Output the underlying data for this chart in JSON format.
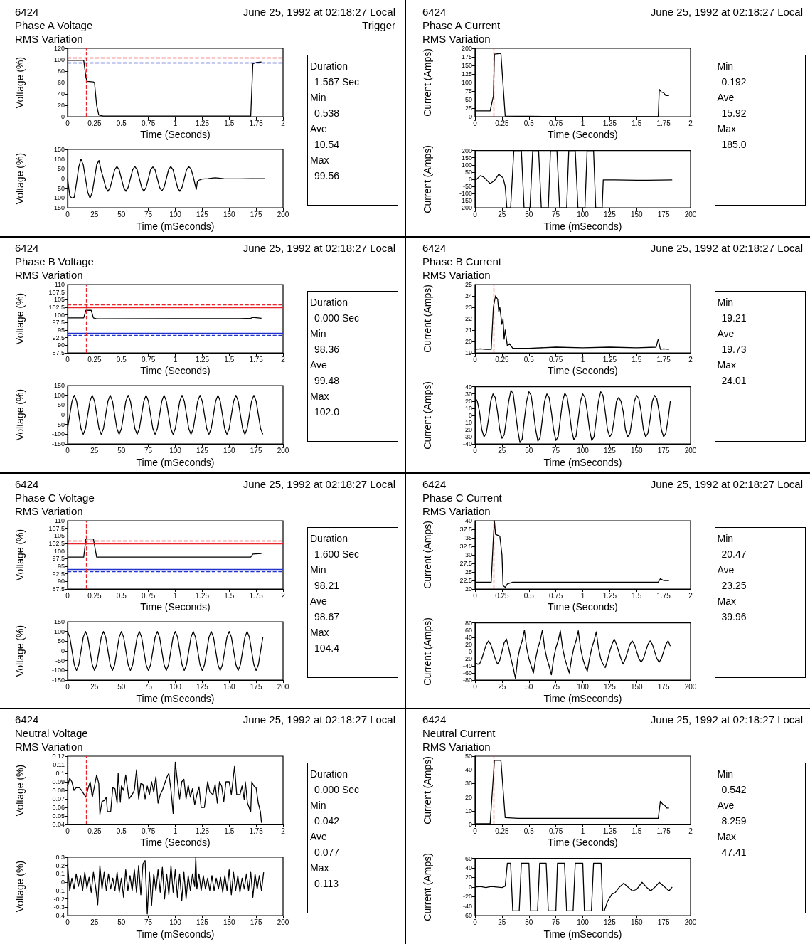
{
  "chart_data": [
    {
      "type": "line",
      "title": "Phase A Voltage",
      "subtitle": "RMS Variation",
      "annotations": [
        "6424",
        "June 25, 1992 at 02:18:27 Local",
        "Trigger"
      ],
      "xlabel": "Time (Seconds)",
      "ylabel": "Voltage (%)",
      "color": "#000000",
      "x": [
        0,
        0.15,
        0.17,
        0.18,
        0.24,
        0.25,
        0.27,
        0.29,
        0.33,
        1.7,
        1.72,
        1.75,
        1.8
      ],
      "values": [
        99,
        99,
        70,
        62,
        61,
        60,
        20,
        3,
        1,
        1,
        93,
        95,
        96
      ],
      "xlim": [
        0,
        2
      ],
      "xticks": [
        0,
        0.25,
        0.5,
        0.75,
        1,
        1.25,
        1.5,
        1.75,
        2
      ],
      "ylim": [
        0,
        120
      ],
      "yticks": [
        0,
        20,
        40,
        60,
        80,
        100,
        120
      ],
      "ref_lines": [
        {
          "axis": "y",
          "value": 104,
          "color": "#e8242a",
          "line_style": "dashed"
        },
        {
          "axis": "y",
          "value": 95,
          "color": "#2233cc",
          "line_style": "dashed"
        },
        {
          "axis": "x",
          "value": 0.165,
          "color": "#e8242a",
          "line_style": "dashed"
        }
      ]
    },
    {
      "type": "line",
      "xlabel": "Time (mSeconds)",
      "ylabel": "Voltage (%)",
      "color": "#000000",
      "x": [
        0,
        2.08,
        4.17,
        6.25,
        8.33,
        10.42,
        12.5,
        14.58,
        16.67,
        18.75,
        20.83,
        22.92,
        25,
        27.08,
        29.17,
        31.25,
        33.33,
        35.42,
        37.5,
        39.58,
        41.67,
        43.75,
        45.83,
        47.92,
        50,
        52.08,
        54.17,
        56.25,
        58.33,
        60.42,
        62.5,
        64.58,
        66.67,
        68.75,
        70.83,
        72.92,
        75,
        77.08,
        79.17,
        81.25,
        83.33,
        85.42,
        87.5,
        89.58,
        91.67,
        93.75,
        95.83,
        97.92,
        100,
        102.08,
        104.17,
        106.25,
        108.33,
        110.42,
        112.5,
        114.58,
        116.67,
        118.75,
        119.5,
        120.5,
        122,
        125,
        130,
        137,
        145,
        160,
        170,
        183
      ],
      "values": [
        0,
        -90,
        -100,
        -95,
        -20,
        60,
        100,
        71,
        0,
        -71,
        -100,
        -71,
        0,
        71,
        93,
        40,
        0,
        -45,
        -65,
        -45,
        0,
        45,
        62,
        45,
        0,
        -45,
        -65,
        -45,
        0,
        45,
        62,
        45,
        0,
        -45,
        -65,
        -45,
        0,
        45,
        60,
        45,
        0,
        -45,
        -63,
        -45,
        0,
        45,
        62,
        45,
        0,
        -45,
        -65,
        -45,
        0,
        45,
        62,
        50,
        10,
        -40,
        -55,
        -15,
        -8,
        -2,
        0,
        4,
        0,
        -1,
        0,
        0
      ],
      "xlim": [
        0,
        200
      ],
      "xticks": [
        0,
        25,
        50,
        75,
        100,
        125,
        150,
        175,
        200
      ],
      "ylim": [
        -150,
        150
      ],
      "yticks": [
        -150,
        -100,
        -50,
        0,
        50,
        100,
        150
      ]
    },
    {
      "type": "other",
      "annotations": [
        "Duration",
        "1.567 Sec",
        "Min",
        "0.538",
        "Ave",
        "10.54",
        "Max",
        "99.56"
      ]
    },
    {
      "type": "line",
      "title": "Phase A Current",
      "subtitle": "RMS Variation",
      "annotations": [
        "6424",
        "June 25, 1992 at 02:18:27 Local"
      ],
      "xlabel": "Time (Seconds)",
      "ylabel": "Current (Amps)",
      "color": "#000000",
      "x": [
        0,
        0.14,
        0.17,
        0.18,
        0.24,
        0.28,
        0.5,
        1.7,
        1.71,
        1.73,
        1.75,
        1.77,
        1.8
      ],
      "values": [
        17,
        17,
        60,
        183,
        185,
        2,
        1,
        0,
        80,
        72,
        70,
        62,
        62
      ],
      "xlim": [
        0,
        2
      ],
      "xticks": [
        0,
        0.25,
        0.5,
        0.75,
        1,
        1.25,
        1.5,
        1.75,
        2
      ],
      "ylim": [
        0,
        200
      ],
      "yticks": [
        0,
        25,
        50,
        75,
        100,
        125,
        150,
        175,
        200
      ],
      "ref_lines": [
        {
          "axis": "x",
          "value": 0.165,
          "color": "#e8242a",
          "line_style": "dashed"
        }
      ]
    },
    {
      "type": "line",
      "xlabel": "Time (mSeconds)",
      "ylabel": "Current (Amps)",
      "color": "#000000",
      "x": [
        0,
        5,
        8,
        14,
        18,
        22,
        26,
        28,
        29.5,
        33,
        36,
        43,
        45.5,
        51,
        53.5,
        59,
        61.5,
        68,
        70,
        76,
        78.5,
        85,
        87,
        93,
        95.5,
        102,
        104,
        110,
        112,
        118,
        119,
        130,
        150,
        160,
        183
      ],
      "values": [
        -10,
        25,
        15,
        -30,
        -10,
        35,
        10,
        -50,
        -200,
        -200,
        200,
        200,
        -200,
        -200,
        200,
        200,
        -200,
        -200,
        200,
        200,
        -200,
        -200,
        200,
        200,
        -200,
        -200,
        200,
        200,
        -200,
        -200,
        -5,
        -5,
        -7,
        -7,
        -5
      ],
      "xlim": [
        0,
        200
      ],
      "xticks": [
        0,
        25,
        50,
        75,
        100,
        125,
        150,
        175,
        200
      ],
      "ylim": [
        -200,
        200
      ],
      "yticks": [
        -200,
        -150,
        -100,
        -50,
        0,
        50,
        100,
        150,
        200
      ]
    },
    {
      "type": "other",
      "annotations": [
        "Min",
        "0.192",
        "Ave",
        "15.92",
        "Max",
        "185.0"
      ]
    },
    {
      "type": "line",
      "title": "Phase B Voltage",
      "subtitle": "RMS Variation",
      "annotations": [
        "6424",
        "June 25, 1992 at 02:18:27 Local"
      ],
      "xlabel": "Time (Seconds)",
      "ylabel": "Voltage (%)",
      "color": "#000000",
      "x": [
        0,
        0.15,
        0.17,
        0.22,
        0.24,
        0.27,
        1,
        1.6,
        1.7,
        1.72,
        1.8
      ],
      "values": [
        99,
        99,
        101.5,
        101.5,
        99,
        98.7,
        98.8,
        98.8,
        98.9,
        99.2,
        98.9
      ],
      "xlim": [
        0,
        2
      ],
      "xticks": [
        0,
        0.25,
        0.5,
        0.75,
        1,
        1.25,
        1.5,
        1.75,
        2
      ],
      "ylim": [
        87.5,
        110
      ],
      "yticks": [
        87.5,
        90,
        92.5,
        95,
        97.5,
        100,
        102.5,
        105,
        107.5,
        110
      ],
      "ref_lines": [
        {
          "axis": "y",
          "value": 103.3,
          "color": "#e8242a",
          "line_style": "dashed"
        },
        {
          "axis": "y",
          "value": 102.5,
          "color": "#e8242a",
          "line_style": "solid"
        },
        {
          "axis": "y",
          "value": 94,
          "color": "#2233cc",
          "line_style": "solid"
        },
        {
          "axis": "y",
          "value": 93.3,
          "color": "#2233cc",
          "line_style": "dashed"
        },
        {
          "axis": "x",
          "value": 0.165,
          "color": "#e8242a",
          "line_style": "dashed"
        }
      ]
    },
    {
      "type": "line",
      "xlabel": "Time (mSeconds)",
      "ylabel": "Voltage (%)",
      "color": "#000000",
      "x": [
        0,
        2.08,
        4.17,
        6.25,
        8.33,
        10.42,
        12.5,
        14.58,
        16.67,
        18.75,
        20.83,
        22.92,
        25,
        27.08,
        29.17,
        31.25,
        33.33,
        35.42,
        37.5,
        39.58,
        41.67,
        43.75,
        45.83,
        47.92,
        50,
        52.08,
        54.17,
        56.25,
        58.33,
        60.42,
        62.5,
        64.58,
        66.67,
        68.75,
        70.83,
        72.92,
        75,
        77.08,
        79.17,
        81.25,
        83.33,
        85.42,
        87.5,
        89.58,
        91.67,
        93.75,
        95.83,
        97.92,
        100,
        102.08,
        104.17,
        106.25,
        108.33,
        110.42,
        112.5,
        114.58,
        116.67,
        118.75,
        120.83,
        122.92,
        125,
        127.08,
        129.17,
        131.25,
        133.33,
        135.42,
        137.5,
        139.58,
        141.67,
        143.75,
        145.83,
        147.92,
        150,
        152.08,
        154.17,
        156.25,
        158.33,
        160.42,
        162.5,
        164.58,
        166.67,
        168.75,
        170.83,
        172.92,
        175,
        177.08,
        179.17,
        181.25
      ],
      "values": [
        -71,
        0,
        71,
        100,
        71,
        0,
        -71,
        -100,
        -71,
        0,
        71,
        100,
        71,
        0,
        -71,
        -100,
        -71,
        0,
        71,
        100,
        71,
        0,
        -71,
        -100,
        -71,
        0,
        71,
        100,
        71,
        0,
        -71,
        -100,
        -71,
        0,
        71,
        100,
        71,
        0,
        -71,
        -100,
        -71,
        0,
        71,
        100,
        71,
        0,
        -71,
        -100,
        -71,
        0,
        71,
        100,
        71,
        0,
        -71,
        -100,
        -71,
        0,
        71,
        100,
        71,
        0,
        -71,
        -100,
        -71,
        0,
        71,
        100,
        71,
        0,
        -71,
        -100,
        -71,
        0,
        71,
        100,
        71,
        0,
        -71,
        -100,
        -71,
        0,
        71,
        100,
        71,
        0,
        -71,
        -100
      ],
      "xlim": [
        0,
        200
      ],
      "xticks": [
        0,
        25,
        50,
        75,
        100,
        125,
        150,
        175,
        200
      ],
      "ylim": [
        -150,
        150
      ],
      "yticks": [
        -150,
        -100,
        -50,
        0,
        50,
        100,
        150
      ]
    },
    {
      "type": "other",
      "annotations": [
        "Duration",
        "0.000 Sec",
        "Min",
        "98.36",
        "Ave",
        "99.48",
        "Max",
        "102.0"
      ]
    },
    {
      "type": "line",
      "title": "Phase B Current",
      "subtitle": "RMS Variation",
      "annotations": [
        "6424",
        "June 25, 1992 at 02:18:27 Local"
      ],
      "xlabel": "Time (Seconds)",
      "ylabel": "Current (Amps)",
      "color": "#000000",
      "x": [
        0,
        0.05,
        0.1,
        0.15,
        0.17,
        0.19,
        0.21,
        0.22,
        0.23,
        0.25,
        0.26,
        0.27,
        0.28,
        0.3,
        0.32,
        0.35,
        0.5,
        0.75,
        1,
        1.25,
        1.5,
        1.68,
        1.7,
        1.72,
        1.75,
        1.8
      ],
      "values": [
        19.3,
        19.35,
        19.3,
        19.3,
        23,
        24,
        23.7,
        22.6,
        23,
        21.5,
        22,
        20.2,
        21,
        19.6,
        19.8,
        19.4,
        19.4,
        19.5,
        19.45,
        19.5,
        19.45,
        19.5,
        20.2,
        19.3,
        19.35,
        19.3
      ],
      "xlim": [
        0,
        2
      ],
      "xticks": [
        0,
        0.25,
        0.5,
        0.75,
        1,
        1.25,
        1.5,
        1.75,
        2
      ],
      "ylim": [
        19,
        25
      ],
      "yticks": [
        19,
        20,
        21,
        22,
        23,
        24,
        25
      ],
      "ref_lines": [
        {
          "axis": "x",
          "value": 0.165,
          "color": "#e8242a",
          "line_style": "dashed"
        }
      ]
    },
    {
      "type": "line",
      "xlabel": "Time (mSeconds)",
      "ylabel": "Current (Amps)",
      "color": "#000000",
      "x": [
        0,
        2.08,
        4.17,
        6.25,
        8.33,
        10.42,
        12.5,
        14.58,
        16.67,
        18.75,
        20.83,
        22.92,
        25,
        27.08,
        29.17,
        31.25,
        33.33,
        35.42,
        37.5,
        39.58,
        41.67,
        43.75,
        45.83,
        47.92,
        50,
        52.08,
        54.17,
        56.25,
        58.33,
        60.42,
        62.5,
        64.58,
        66.67,
        68.75,
        70.83,
        72.92,
        75,
        77.08,
        79.17,
        81.25,
        83.33,
        85.42,
        87.5,
        89.58,
        91.67,
        93.75,
        95.83,
        97.92,
        100,
        102.08,
        104.17,
        106.25,
        108.33,
        110.42,
        112.5,
        114.58,
        116.67,
        118.75,
        120.83,
        122.92,
        125,
        127.08,
        129.17,
        131.25,
        133.33,
        135.42,
        137.5,
        139.58,
        141.67,
        143.75,
        145.83,
        147.92,
        150,
        152.08,
        154.17,
        156.25,
        158.33,
        160.42,
        162.5,
        164.58,
        166.67,
        168.75,
        170.83,
        172.92,
        175,
        177.08,
        179.17,
        181.25
      ],
      "values": [
        25,
        20,
        5,
        -20,
        -30,
        -25,
        -5,
        20,
        30,
        25,
        5,
        -20,
        -32,
        -27,
        -5,
        20,
        35,
        30,
        5,
        -20,
        -38,
        -33,
        -5,
        20,
        33,
        28,
        5,
        -20,
        -36,
        -31,
        -5,
        20,
        30,
        25,
        5,
        -20,
        -35,
        -30,
        -5,
        20,
        31,
        26,
        5,
        -20,
        -34,
        -29,
        -5,
        20,
        30,
        25,
        5,
        -20,
        -35,
        -30,
        -5,
        20,
        33,
        28,
        5,
        -20,
        -30,
        -25,
        -5,
        20,
        25,
        20,
        5,
        -20,
        -30,
        -25,
        -5,
        20,
        28,
        23,
        5,
        -20,
        -30,
        -25,
        -5,
        20,
        28,
        23,
        5,
        -20,
        -30,
        -25,
        -5,
        20
      ],
      "xlim": [
        0,
        200
      ],
      "xticks": [
        0,
        25,
        50,
        75,
        100,
        125,
        150,
        175,
        200
      ],
      "ylim": [
        -40,
        40
      ],
      "yticks": [
        -40,
        -30,
        -20,
        -10,
        0,
        10,
        20,
        30,
        40
      ]
    },
    {
      "type": "other",
      "annotations": [
        "Min",
        "19.21",
        "Ave",
        "19.73",
        "Max",
        "24.01"
      ]
    },
    {
      "type": "line",
      "title": "Phase C Voltage",
      "subtitle": "RMS Variation",
      "annotations": [
        "6424",
        "June 25, 1992 at 02:18:27 Local"
      ],
      "xlabel": "Time (Seconds)",
      "ylabel": "Voltage (%)",
      "color": "#000000",
      "x": [
        0,
        0.15,
        0.17,
        0.24,
        0.27,
        1,
        1.7,
        1.72,
        1.8
      ],
      "values": [
        98,
        98,
        104,
        104,
        98,
        98,
        98,
        99,
        99.2
      ],
      "xlim": [
        0,
        2
      ],
      "xticks": [
        0,
        0.25,
        0.5,
        0.75,
        1,
        1.25,
        1.5,
        1.75,
        2
      ],
      "ylim": [
        87.5,
        110
      ],
      "yticks": [
        87.5,
        90,
        92.5,
        95,
        97.5,
        100,
        102.5,
        105,
        107.5,
        110
      ],
      "ref_lines": [
        {
          "axis": "y",
          "value": 103.3,
          "color": "#e8242a",
          "line_style": "dashed"
        },
        {
          "axis": "y",
          "value": 102.5,
          "color": "#e8242a",
          "line_style": "solid"
        },
        {
          "axis": "y",
          "value": 94,
          "color": "#2233cc",
          "line_style": "solid"
        },
        {
          "axis": "y",
          "value": 93.3,
          "color": "#2233cc",
          "line_style": "dashed"
        },
        {
          "axis": "x",
          "value": 0.165,
          "color": "#e8242a",
          "line_style": "dashed"
        }
      ]
    },
    {
      "type": "line",
      "xlabel": "Time (mSeconds)",
      "ylabel": "Voltage (%)",
      "color": "#000000",
      "x": [
        0,
        2.08,
        4.17,
        6.25,
        8.33,
        10.42,
        12.5,
        14.58,
        16.67,
        18.75,
        20.83,
        22.92,
        25,
        27.08,
        29.17,
        31.25,
        33.33,
        35.42,
        37.5,
        39.58,
        41.67,
        43.75,
        45.83,
        47.92,
        50,
        52.08,
        54.17,
        56.25,
        58.33,
        60.42,
        62.5,
        64.58,
        66.67,
        68.75,
        70.83,
        72.92,
        75,
        77.08,
        79.17,
        81.25,
        83.33,
        85.42,
        87.5,
        89.58,
        91.67,
        93.75,
        95.83,
        97.92,
        100,
        102.08,
        104.17,
        106.25,
        108.33,
        110.42,
        112.5,
        114.58,
        116.67,
        118.75,
        120.83,
        122.92,
        125,
        127.08,
        129.17,
        131.25,
        133.33,
        135.42,
        137.5,
        139.58,
        141.67,
        143.75,
        145.83,
        147.92,
        150,
        152.08,
        154.17,
        156.25,
        158.33,
        160.42,
        162.5,
        164.58,
        166.67,
        168.75,
        170.83,
        172.92,
        175,
        177.08,
        179.17,
        181.25
      ],
      "values": [
        100,
        71,
        0,
        -71,
        -100,
        -71,
        0,
        71,
        100,
        71,
        0,
        -71,
        -100,
        -71,
        0,
        71,
        100,
        71,
        0,
        -71,
        -100,
        -71,
        0,
        71,
        100,
        71,
        0,
        -71,
        -100,
        -71,
        0,
        71,
        100,
        71,
        0,
        -71,
        -100,
        -71,
        0,
        71,
        100,
        71,
        0,
        -71,
        -100,
        -71,
        0,
        71,
        100,
        71,
        0,
        -71,
        -100,
        -71,
        0,
        71,
        100,
        71,
        0,
        -71,
        -100,
        -71,
        0,
        71,
        100,
        71,
        0,
        -71,
        -100,
        -71,
        0,
        71,
        100,
        71,
        0,
        -71,
        -100,
        -71,
        0,
        71,
        100,
        71,
        0,
        -71,
        -100,
        -71,
        0,
        71
      ],
      "xlim": [
        0,
        200
      ],
      "xticks": [
        0,
        25,
        50,
        75,
        100,
        125,
        150,
        175,
        200
      ],
      "ylim": [
        -150,
        150
      ],
      "yticks": [
        -150,
        -100,
        -50,
        0,
        50,
        100,
        150
      ]
    },
    {
      "type": "other",
      "annotations": [
        "Duration",
        "1.600 Sec",
        "Min",
        "98.21",
        "Ave",
        "98.67",
        "Max",
        "104.4"
      ]
    },
    {
      "type": "line",
      "title": "Phase C Current",
      "subtitle": "RMS Variation",
      "annotations": [
        "6424",
        "June 25, 1992 at 02:18:27 Local"
      ],
      "xlabel": "Time (Seconds)",
      "ylabel": "Current (Amps)",
      "color": "#000000",
      "x": [
        0,
        0.15,
        0.17,
        0.18,
        0.19,
        0.23,
        0.25,
        0.26,
        0.28,
        0.3,
        0.35,
        1,
        1.7,
        1.72,
        1.75,
        1.8
      ],
      "values": [
        22,
        22,
        35,
        40,
        36,
        35.5,
        30,
        21,
        20.5,
        21.5,
        22,
        22,
        22,
        23,
        22.5,
        22.5
      ],
      "xlim": [
        0,
        2
      ],
      "xticks": [
        0,
        0.25,
        0.5,
        0.75,
        1,
        1.25,
        1.5,
        1.75,
        2
      ],
      "ylim": [
        20,
        40
      ],
      "yticks": [
        20,
        22.5,
        25,
        27.5,
        30,
        32.5,
        35,
        37.5,
        40
      ],
      "ref_lines": [
        {
          "axis": "x",
          "value": 0.165,
          "color": "#e8242a",
          "line_style": "dashed"
        }
      ]
    },
    {
      "type": "line",
      "xlabel": "Time (mSeconds)",
      "ylabel": "Current (Amps)",
      "color": "#000000",
      "x": [
        0,
        2.08,
        4.17,
        6.25,
        8.33,
        10.42,
        12.5,
        14.58,
        16.67,
        18.75,
        20.83,
        22.92,
        25,
        27.08,
        29.17,
        31.25,
        33.33,
        35.42,
        37.5,
        39.58,
        41.67,
        43.75,
        45.83,
        47.92,
        50,
        52.08,
        54.17,
        56.25,
        58.33,
        60.42,
        62.5,
        64.58,
        66.67,
        68.75,
        70.83,
        72.92,
        75,
        77.08,
        79.17,
        81.25,
        83.33,
        85.42,
        87.5,
        89.58,
        91.67,
        93.75,
        95.83,
        97.92,
        100,
        102.08,
        104.17,
        106.25,
        108.33,
        110.42,
        112.5,
        114.58,
        116.67,
        118.75,
        120.83,
        122.92,
        125,
        127.08,
        129.17,
        131.25,
        133.33,
        135.42,
        137.5,
        139.58,
        141.67,
        143.75,
        145.83,
        147.92,
        150,
        152.08,
        154.17,
        156.25,
        158.33,
        160.42,
        162.5,
        164.58,
        166.67,
        168.75,
        170.83,
        172.92,
        175,
        177.08,
        179.17,
        181.25
      ],
      "values": [
        -30,
        -35,
        -35,
        -20,
        0,
        20,
        30,
        20,
        0,
        -20,
        -35,
        -25,
        0,
        25,
        35,
        10,
        -20,
        -45,
        -75,
        -20,
        10,
        30,
        60,
        10,
        -20,
        -40,
        -60,
        -20,
        10,
        30,
        60,
        10,
        -20,
        -40,
        -65,
        -20,
        10,
        30,
        58,
        10,
        -20,
        -40,
        -60,
        -20,
        10,
        30,
        58,
        10,
        -20,
        -40,
        -55,
        -20,
        10,
        30,
        55,
        10,
        -20,
        -35,
        -45,
        -25,
        0,
        20,
        35,
        20,
        0,
        -20,
        -35,
        -20,
        0,
        20,
        30,
        20,
        0,
        -20,
        -30,
        -20,
        0,
        20,
        30,
        20,
        0,
        -20,
        -30,
        -20,
        0,
        20,
        30,
        15
      ],
      "xlim": [
        0,
        200
      ],
      "xticks": [
        0,
        25,
        50,
        75,
        100,
        125,
        150,
        175,
        200
      ],
      "ylim": [
        -80,
        80
      ],
      "yticks": [
        -80,
        -60,
        -40,
        -20,
        0,
        20,
        40,
        60,
        80
      ]
    },
    {
      "type": "other",
      "annotations": [
        "Min",
        "20.47",
        "Ave",
        "23.25",
        "Max",
        "39.96"
      ]
    },
    {
      "type": "line",
      "title": "Neutral Voltage",
      "subtitle": "RMS Variation",
      "annotations": [
        "6424",
        "June 25, 1992 at 02:18:27 Local"
      ],
      "xlabel": "Time (Seconds)",
      "ylabel": "Voltage (%)",
      "color": "#000000",
      "x": [
        0,
        0.02,
        0.04,
        0.06,
        0.08,
        0.11,
        0.13,
        0.15,
        0.17,
        0.19,
        0.21,
        0.23,
        0.25,
        0.27,
        0.29,
        0.3,
        0.32,
        0.34,
        0.36,
        0.37,
        0.4,
        0.42,
        0.44,
        0.46,
        0.47,
        0.49,
        0.5,
        0.52,
        0.54,
        0.57,
        0.6,
        0.62,
        0.64,
        0.66,
        0.68,
        0.7,
        0.72,
        0.74,
        0.76,
        0.78,
        0.8,
        0.82,
        0.84,
        0.86,
        0.88,
        0.92,
        0.94,
        0.96,
        0.98,
        1,
        1.02,
        1.04,
        1.06,
        1.08,
        1.1,
        1.12,
        1.14,
        1.16,
        1.18,
        1.2,
        1.22,
        1.24,
        1.27,
        1.3,
        1.32,
        1.35,
        1.37,
        1.39,
        1.41,
        1.43,
        1.45,
        1.47,
        1.5,
        1.52,
        1.55,
        1.57,
        1.6,
        1.62,
        1.64,
        1.65,
        1.67,
        1.7,
        1.71,
        1.73,
        1.75,
        1.77,
        1.79,
        1.8
      ],
      "values": [
        0.085,
        0.094,
        0.09,
        0.08,
        0.083,
        0.083,
        0.08,
        0.076,
        0.072,
        0.082,
        0.09,
        0.072,
        0.085,
        0.098,
        0.088,
        0.052,
        0.067,
        0.068,
        0.072,
        0.055,
        0.055,
        0.083,
        0.082,
        0.065,
        0.1,
        0.066,
        0.085,
        0.08,
        0.098,
        0.07,
        0.075,
        0.08,
        0.104,
        0.07,
        0.088,
        0.087,
        0.07,
        0.085,
        0.075,
        0.09,
        0.078,
        0.096,
        0.065,
        0.075,
        0.08,
        0.095,
        0.1,
        0.08,
        0.053,
        0.113,
        0.09,
        0.07,
        0.09,
        0.093,
        0.07,
        0.086,
        0.072,
        0.082,
        0.063,
        0.075,
        0.084,
        0.06,
        0.06,
        0.09,
        0.078,
        0.075,
        0.087,
        0.065,
        0.09,
        0.085,
        0.067,
        0.09,
        0.09,
        0.075,
        0.108,
        0.075,
        0.075,
        0.085,
        0.069,
        0.09,
        0.065,
        0.055,
        0.09,
        0.085,
        0.083,
        0.065,
        0.055,
        0.042
      ],
      "xlim": [
        0,
        2
      ],
      "xticks": [
        0,
        0.25,
        0.5,
        0.75,
        1,
        1.25,
        1.5,
        1.75,
        2
      ],
      "ylim": [
        0.04,
        0.12
      ],
      "yticks": [
        0.04,
        0.05,
        0.06,
        0.07,
        0.08,
        0.09,
        0.1,
        0.11,
        0.12
      ],
      "ref_lines": [
        {
          "axis": "x",
          "value": 0.165,
          "color": "#e8242a",
          "line_style": "dashed"
        }
      ]
    },
    {
      "type": "line",
      "xlabel": "Time (mSeconds)",
      "ylabel": "Voltage (%)",
      "color": "#000000",
      "x": [
        0,
        2,
        4,
        6,
        8,
        10,
        12,
        14,
        16,
        18,
        20,
        22,
        24,
        26,
        28,
        30,
        32,
        34,
        36,
        38,
        40,
        42,
        44,
        46,
        48,
        50,
        52,
        54,
        56,
        58,
        60,
        62,
        64,
        66,
        68,
        70,
        72,
        74,
        76,
        78,
        80,
        82,
        84,
        86,
        88,
        90,
        92,
        94,
        96,
        98,
        100,
        102,
        104,
        106,
        108,
        110,
        112,
        114,
        116,
        118,
        119,
        120,
        122,
        124,
        126,
        128,
        130,
        132,
        134,
        136,
        138,
        140,
        142,
        144,
        146,
        148,
        150,
        152,
        154,
        156,
        158,
        160,
        162,
        164,
        166,
        168,
        170,
        172,
        174,
        176,
        178,
        180,
        182
      ],
      "values": [
        0.22,
        -0.1,
        0.05,
        -0.08,
        0.1,
        -0.05,
        0.08,
        -0.1,
        0.12,
        -0.07,
        0.06,
        -0.12,
        0.12,
        -0.05,
        -0.27,
        0.2,
        -0.08,
        0.12,
        -0.1,
        0.1,
        -0.08,
        0.05,
        -0.1,
        0.12,
        -0.12,
        0.05,
        -0.18,
        0.15,
        -0.1,
        0.08,
        -0.1,
        0.15,
        -0.12,
        0.2,
        -0.15,
        0.22,
        0.26,
        -0.38,
        0.12,
        -0.28,
        0.1,
        -0.1,
        0.15,
        -0.12,
        0.18,
        -0.2,
        0.1,
        -0.15,
        0.2,
        -0.12,
        0.15,
        -0.18,
        0.1,
        -0.22,
        0.12,
        -0.2,
        0.08,
        -0.1,
        0.1,
        -0.05,
        0.3,
        -0.08,
        0.1,
        -0.1,
        0.08,
        -0.08,
        0.05,
        -0.1,
        0.08,
        -0.1,
        0.05,
        -0.08,
        0.06,
        -0.12,
        0.08,
        -0.1,
        0.15,
        -0.15,
        0.12,
        -0.1,
        0.08,
        -0.12,
        0.05,
        -0.08,
        0.1,
        -0.1,
        0.12,
        -0.18,
        0.1,
        -0.08,
        0.08,
        -0.1,
        0.12
      ],
      "xlim": [
        0,
        200
      ],
      "xticks": [
        0,
        25,
        50,
        75,
        100,
        125,
        150,
        175,
        200
      ],
      "ylim": [
        -0.4,
        0.3
      ],
      "yticks": [
        -0.4,
        -0.3,
        -0.2,
        -0.1,
        0,
        0.1,
        0.2,
        0.3
      ]
    },
    {
      "type": "other",
      "annotations": [
        "Duration",
        "0.000 Sec",
        "Min",
        "0.042",
        "Ave",
        "0.077",
        "Max",
        "0.113"
      ]
    },
    {
      "type": "line",
      "title": "Neutral Current",
      "subtitle": "RMS Variation",
      "annotations": [
        "6424",
        "June 25, 1992 at 02:18:27 Local"
      ],
      "xlabel": "Time (Seconds)",
      "ylabel": "Current (Amps)",
      "color": "#000000",
      "x": [
        0,
        0.14,
        0.18,
        0.24,
        0.28,
        0.4,
        1.7,
        1.72,
        1.74,
        1.76,
        1.78,
        1.8
      ],
      "values": [
        0.6,
        0.6,
        47,
        47,
        5,
        4.5,
        4.5,
        17,
        15,
        14,
        12,
        12
      ],
      "xlim": [
        0,
        2
      ],
      "xticks": [
        0,
        0.25,
        0.5,
        0.75,
        1,
        1.25,
        1.5,
        1.75,
        2
      ],
      "ylim": [
        0,
        50
      ],
      "yticks": [
        0,
        10,
        20,
        30,
        40,
        50
      ],
      "ref_lines": [
        {
          "axis": "x",
          "value": 0.165,
          "color": "#e8242a",
          "line_style": "dashed"
        }
      ]
    },
    {
      "type": "line",
      "xlabel": "Time (mSeconds)",
      "ylabel": "Current (Amps)",
      "color": "#000000",
      "x": [
        0,
        5,
        10,
        15,
        20,
        25,
        28,
        30,
        33,
        35,
        41,
        43,
        50,
        51.5,
        58,
        60,
        66,
        68,
        75,
        76.5,
        83,
        85,
        91,
        93,
        100,
        101.5,
        108,
        110,
        117,
        118.5,
        120,
        123,
        127,
        130,
        134,
        138,
        142,
        146,
        150,
        155,
        159,
        163,
        167,
        171,
        175,
        180,
        183
      ],
      "values": [
        0,
        1,
        -1,
        1,
        0,
        -1,
        2,
        50,
        50,
        -50,
        -50,
        50,
        50,
        -50,
        -50,
        50,
        50,
        -50,
        -50,
        50,
        50,
        -50,
        -50,
        50,
        50,
        -50,
        -50,
        50,
        50,
        -50,
        -50,
        -30,
        -15,
        -12,
        0,
        8,
        0,
        -8,
        -5,
        10,
        0,
        -8,
        0,
        10,
        2,
        -8,
        0
      ],
      "xlim": [
        0,
        200
      ],
      "xticks": [
        0,
        25,
        50,
        75,
        100,
        125,
        150,
        175,
        200
      ],
      "ylim": [
        -60,
        60
      ],
      "yticks": [
        -60,
        -40,
        -20,
        0,
        20,
        40,
        60
      ]
    },
    {
      "type": "other",
      "annotations": [
        "Min",
        "0.542",
        "Ave",
        "8.259",
        "Max",
        "47.41"
      ]
    }
  ]
}
